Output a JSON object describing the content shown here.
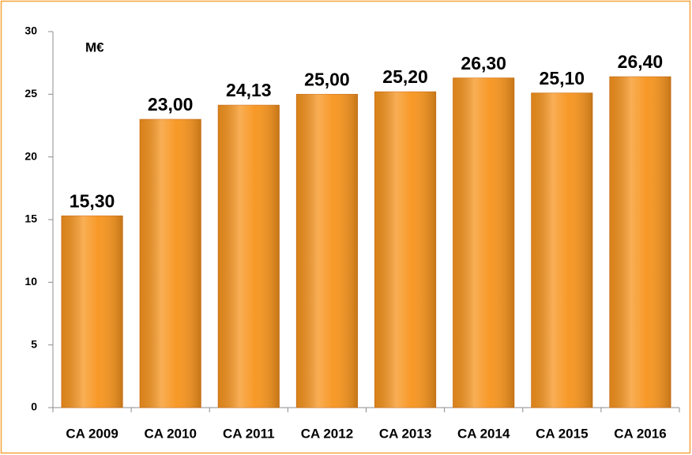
{
  "chart_data": {
    "type": "bar",
    "y_label": "M€",
    "categories": [
      "CA 2009",
      "CA 2010",
      "CA 2011",
      "CA 2012",
      "CA 2013",
      "CA 2014",
      "CA 2015",
      "CA 2016"
    ],
    "values": [
      15.3,
      23.0,
      24.13,
      25.0,
      25.2,
      26.3,
      25.1,
      26.4
    ],
    "value_labels": [
      "15,30",
      "23,00",
      "24,13",
      "25,00",
      "25,20",
      "26,30",
      "25,10",
      "26,40"
    ],
    "color": "#f7941d",
    "ylim": [
      0,
      30
    ],
    "yticks": [
      0,
      5,
      10,
      15,
      20,
      25,
      30
    ],
    "grid": false
  }
}
